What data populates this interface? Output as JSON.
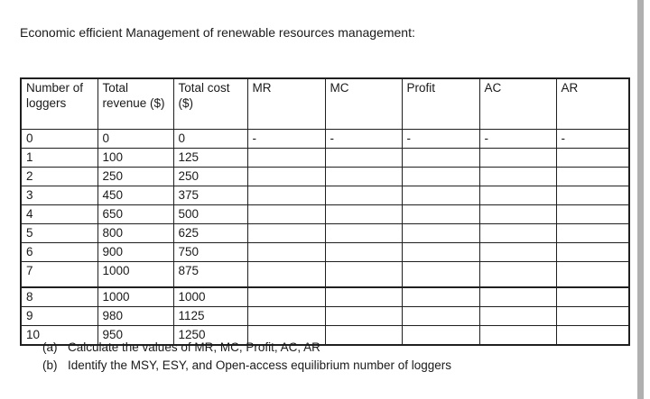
{
  "title": "Economic efficient Management of renewable resources management:",
  "table": {
    "columns": [
      "Number of loggers",
      "Total revenue ($)",
      "Total cost ($)",
      "MR",
      "MC",
      "Profit",
      "AC",
      "AR"
    ],
    "rows": [
      [
        "0",
        "0",
        "0",
        "-",
        "-",
        "-",
        "-",
        "-"
      ],
      [
        "1",
        "100",
        "125",
        "",
        "",
        "",
        "",
        ""
      ],
      [
        "2",
        "250",
        "250",
        "",
        "",
        "",
        "",
        ""
      ],
      [
        "3",
        "450",
        "375",
        "",
        "",
        "",
        "",
        ""
      ],
      [
        "4",
        "650",
        "500",
        "",
        "",
        "",
        "",
        ""
      ],
      [
        "5",
        "800",
        "625",
        "",
        "",
        "",
        "",
        ""
      ],
      [
        "6",
        "900",
        "750",
        "",
        "",
        "",
        "",
        ""
      ],
      [
        "7",
        "1000",
        "875",
        "",
        "",
        "",
        "",
        ""
      ],
      [
        "8",
        "1000",
        "1000",
        "",
        "",
        "",
        "",
        ""
      ],
      [
        "9",
        "980",
        "1125",
        "",
        "",
        "",
        "",
        ""
      ],
      [
        "10",
        "950",
        "1250",
        "",
        "",
        "",
        "",
        ""
      ]
    ],
    "tall_row_first_cell": "7"
  },
  "questions": [
    {
      "label": "(a)",
      "text": "Calculate the values of MR, MC, Profit, AC, AR"
    },
    {
      "label": "(b)",
      "text": "Identify the MSY, ESY, and Open-access equilibrium number of loggers"
    }
  ],
  "colors": {
    "background": "#ffffff",
    "text": "#1a1a1a",
    "table_border": "#1f1f1f",
    "edge_strip": "#b0b0b0"
  }
}
